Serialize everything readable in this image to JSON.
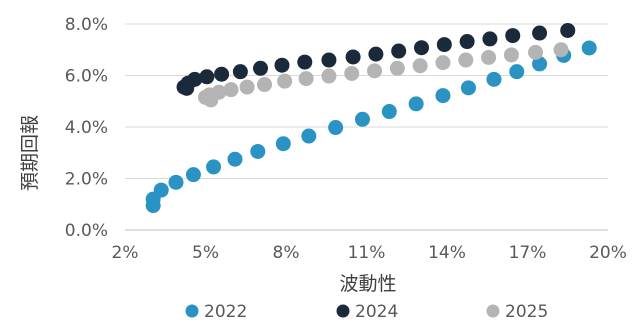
{
  "chart_data": {
    "type": "scatter",
    "title": "",
    "xlabel": "波動性",
    "ylabel": "預期回報",
    "xlim": [
      2,
      20
    ],
    "ylim": [
      0,
      8
    ],
    "x_ticks": [
      2,
      5,
      8,
      11,
      14,
      17,
      20
    ],
    "x_tick_labels": [
      "2%",
      "5%",
      "8%",
      "11%",
      "14%",
      "17%",
      "20%"
    ],
    "y_ticks": [
      0,
      2,
      4,
      6,
      8
    ],
    "y_tick_labels": [
      "0.0%",
      "2.0%",
      "4.0%",
      "6.0%",
      "8.0%"
    ],
    "grid": "horizontal",
    "legend_position": "bottom",
    "series": [
      {
        "name": "2022",
        "color": "#2a93c4",
        "points": [
          [
            3.05,
            0.95
          ],
          [
            3.05,
            1.2
          ],
          [
            3.35,
            1.55
          ],
          [
            3.9,
            1.85
          ],
          [
            4.55,
            2.15
          ],
          [
            5.3,
            2.45
          ],
          [
            6.1,
            2.75
          ],
          [
            6.95,
            3.05
          ],
          [
            7.9,
            3.35
          ],
          [
            8.85,
            3.65
          ],
          [
            9.85,
            3.98
          ],
          [
            10.85,
            4.3
          ],
          [
            11.85,
            4.6
          ],
          [
            12.85,
            4.9
          ],
          [
            13.85,
            5.22
          ],
          [
            14.8,
            5.52
          ],
          [
            15.75,
            5.85
          ],
          [
            16.6,
            6.15
          ],
          [
            17.45,
            6.45
          ],
          [
            18.35,
            6.78
          ],
          [
            19.3,
            7.07
          ]
        ]
      },
      {
        "name": "2024",
        "color": "#1b2a3a",
        "points": [
          [
            4.2,
            5.55
          ],
          [
            4.3,
            5.5
          ],
          [
            4.35,
            5.7
          ],
          [
            4.6,
            5.85
          ],
          [
            5.05,
            5.95
          ],
          [
            5.6,
            6.05
          ],
          [
            6.3,
            6.15
          ],
          [
            7.05,
            6.28
          ],
          [
            7.85,
            6.4
          ],
          [
            8.7,
            6.52
          ],
          [
            9.6,
            6.6
          ],
          [
            10.5,
            6.72
          ],
          [
            11.35,
            6.83
          ],
          [
            12.2,
            6.95
          ],
          [
            13.05,
            7.08
          ],
          [
            13.9,
            7.2
          ],
          [
            14.75,
            7.32
          ],
          [
            15.6,
            7.42
          ],
          [
            16.45,
            7.55
          ],
          [
            17.45,
            7.65
          ],
          [
            18.5,
            7.75
          ]
        ]
      },
      {
        "name": "2025",
        "color": "#b4b4b4",
        "points": [
          [
            5.0,
            5.15
          ],
          [
            5.2,
            5.05
          ],
          [
            5.15,
            5.25
          ],
          [
            5.5,
            5.35
          ],
          [
            5.95,
            5.45
          ],
          [
            6.55,
            5.55
          ],
          [
            7.2,
            5.65
          ],
          [
            7.95,
            5.78
          ],
          [
            8.75,
            5.88
          ],
          [
            9.6,
            5.98
          ],
          [
            10.45,
            6.08
          ],
          [
            11.3,
            6.18
          ],
          [
            12.15,
            6.28
          ],
          [
            13.0,
            6.38
          ],
          [
            13.85,
            6.5
          ],
          [
            14.7,
            6.6
          ],
          [
            15.55,
            6.7
          ],
          [
            16.4,
            6.8
          ],
          [
            17.3,
            6.9
          ],
          [
            18.25,
            7.0
          ]
        ]
      }
    ]
  }
}
